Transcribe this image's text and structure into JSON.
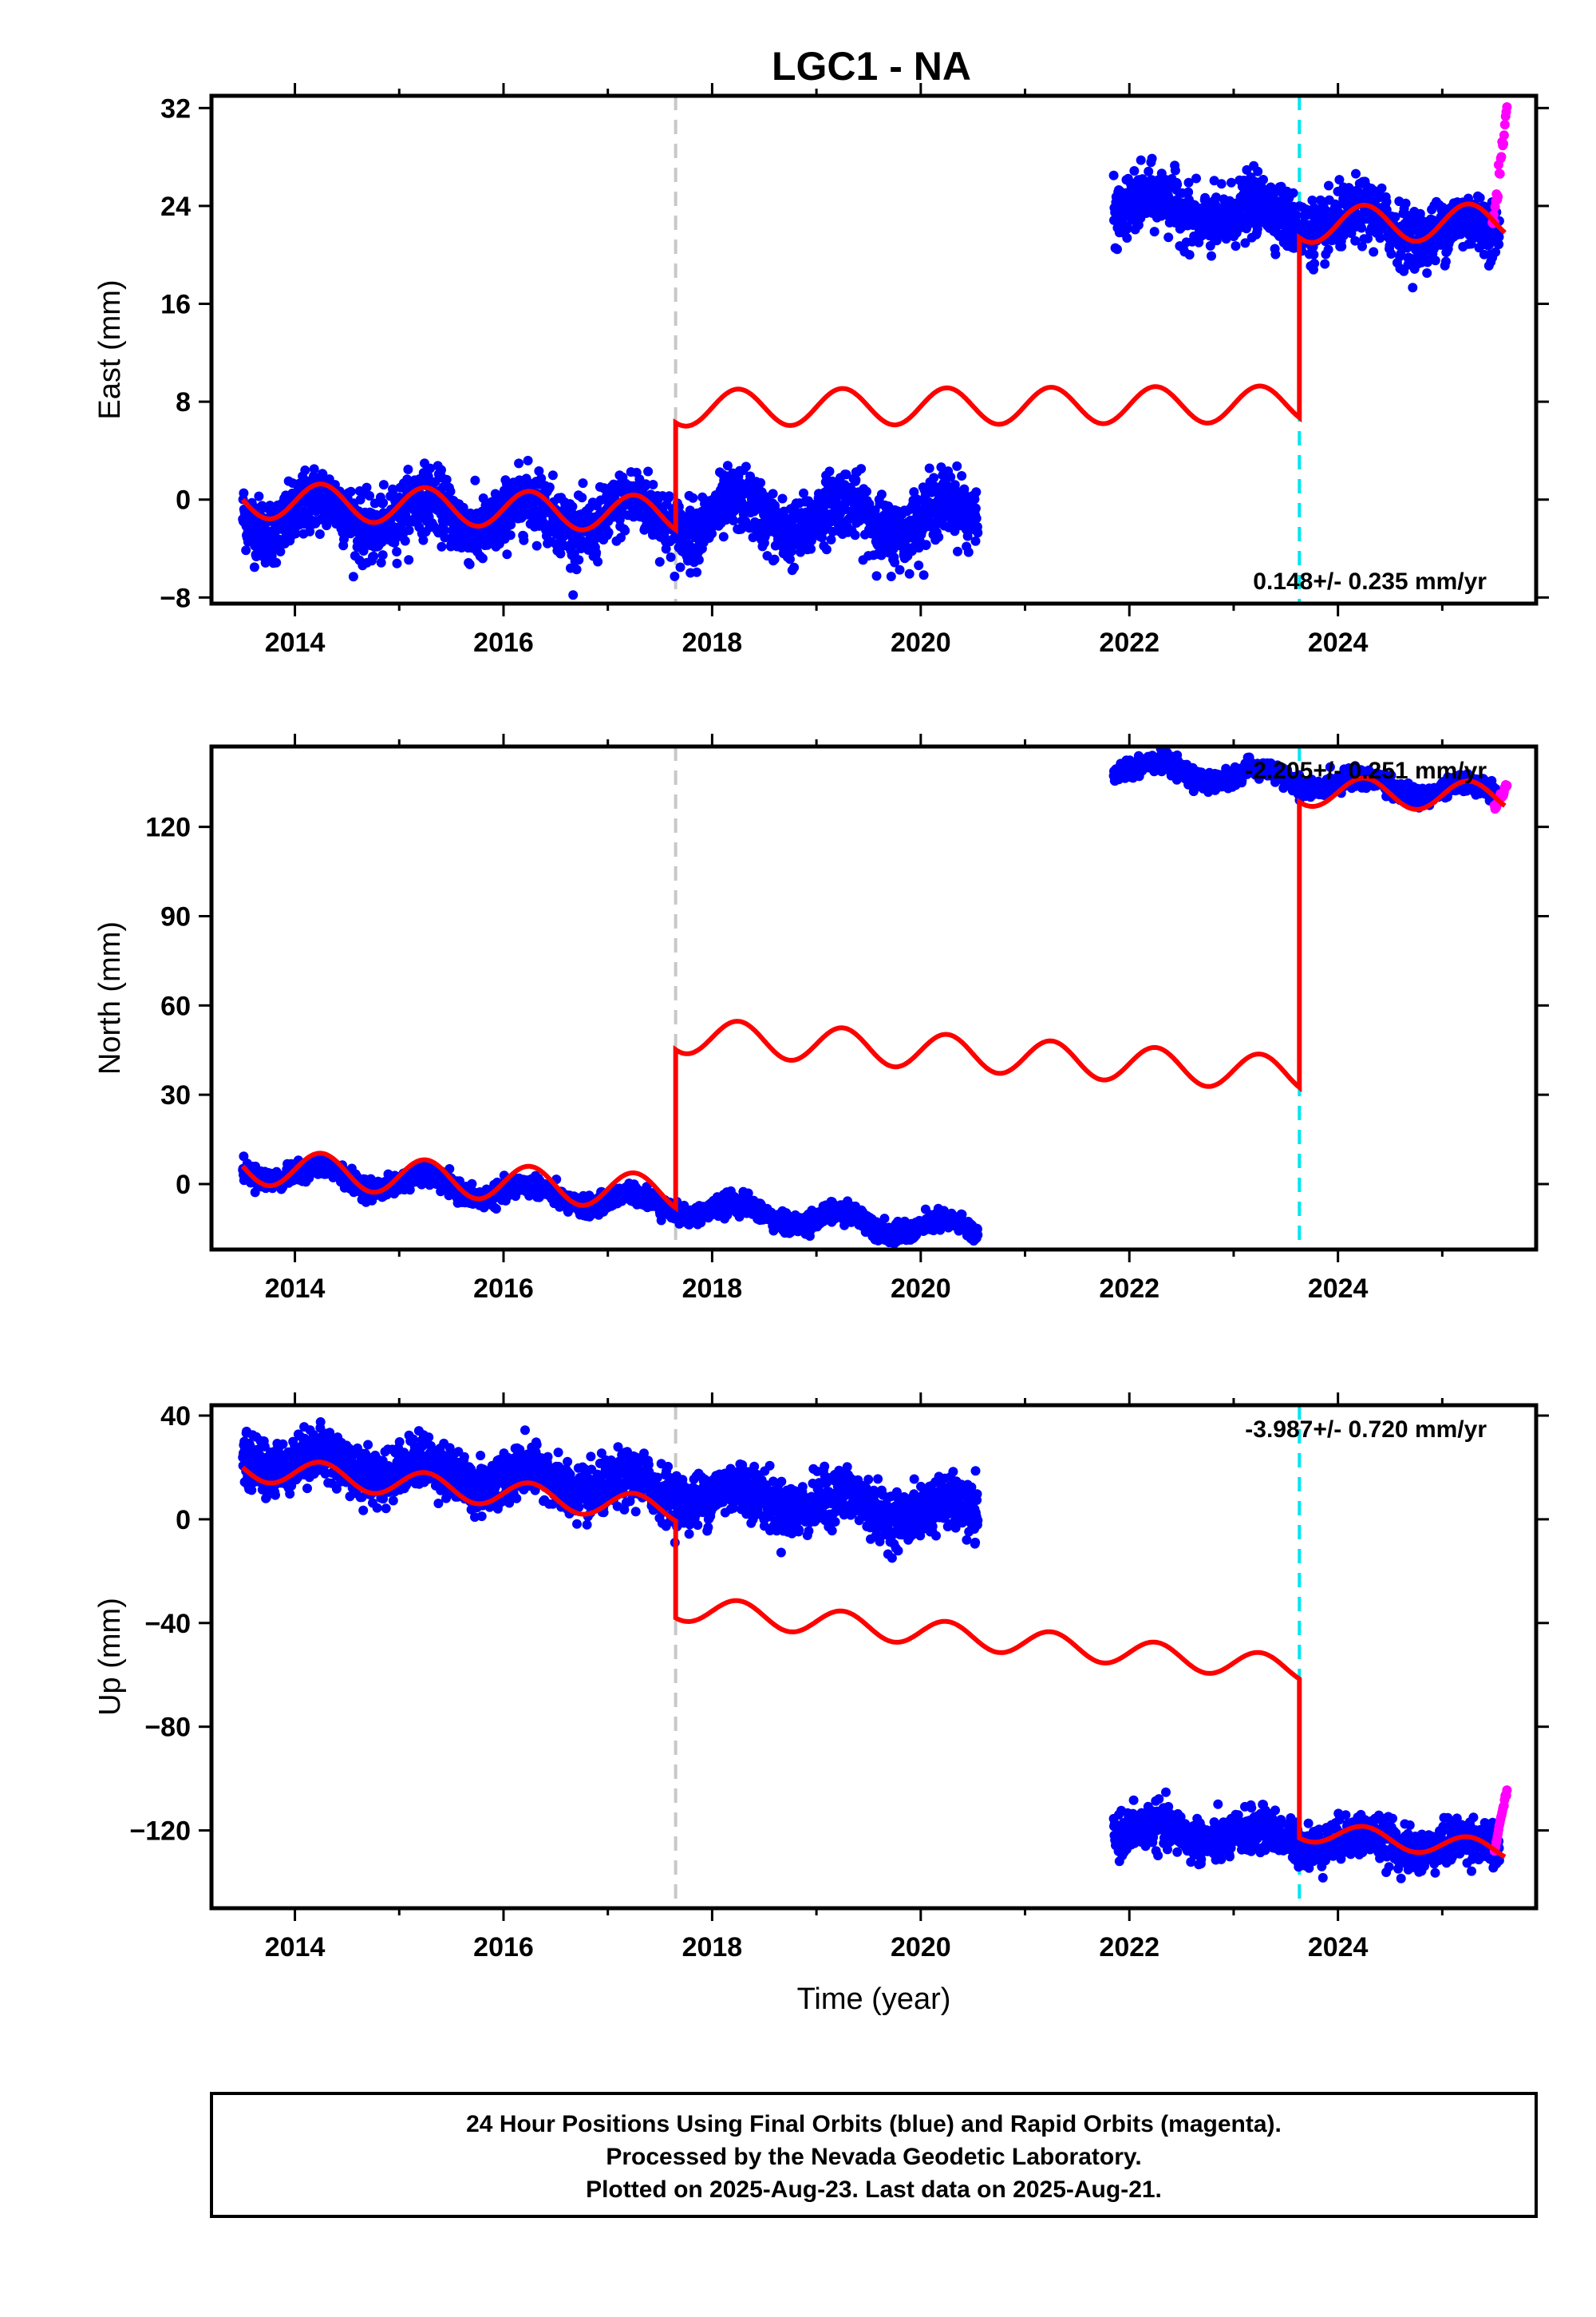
{
  "title": "LGC1 - NA",
  "chart_data": [
    {
      "type": "scatter",
      "ylabel": "East (mm)",
      "xlim": [
        2013.2,
        2025.9
      ],
      "ylim": [
        -8.5,
        33
      ],
      "yticks": [
        -8,
        0,
        8,
        16,
        24,
        32
      ],
      "xticks": [
        2014,
        2016,
        2018,
        2020,
        2022,
        2024
      ],
      "rate": "0.148+/- 0.235 mm/yr",
      "rate_anchor": "bottom",
      "dashed_lines": [
        {
          "x": 2017.65,
          "color": "#c8c8c8"
        },
        {
          "x": 2023.63,
          "color": "#00e5ee"
        }
      ],
      "segments": [
        {
          "x0": 2013.5,
          "x1": 2017.65,
          "offset": 0,
          "trend": -0.3,
          "amp": 1.5,
          "phase": 0.0
        },
        {
          "x0": 2017.65,
          "x1": 2023.63,
          "offset": 7.5,
          "trend": 0.05,
          "amp": 1.5,
          "phase": 0.0
        },
        {
          "x0": 2023.63,
          "x1": 2025.6,
          "offset": 22.5,
          "trend": 0.1,
          "amp": 1.5,
          "phase": 0.0
        }
      ],
      "blue_data": [
        {
          "x0": 2013.5,
          "x1": 2020.55,
          "offset": -1.2,
          "trend": -0.05,
          "amp": 1.4,
          "spread": 1.3
        },
        {
          "x0": 2021.85,
          "x1": 2025.55,
          "offset": 24,
          "trend": -0.6,
          "amp": 1.0,
          "spread": 1.2
        }
      ],
      "magenta_data": {
        "x0": 2025.48,
        "x1": 2025.62,
        "y0": 22,
        "y1": 32
      }
    },
    {
      "type": "scatter",
      "ylabel": "North (mm)",
      "xlim": [
        2013.2,
        2025.9
      ],
      "ylim": [
        -22,
        147
      ],
      "yticks": [
        0,
        30,
        60,
        90,
        120
      ],
      "xticks": [
        2014,
        2016,
        2018,
        2020,
        2022,
        2024
      ],
      "rate": "-2.205+/- 0.251 mm/yr",
      "rate_anchor": "top",
      "dashed_lines": [
        {
          "x": 2017.65,
          "color": "#c8c8c8"
        },
        {
          "x": 2023.63,
          "color": "#00e5ee"
        }
      ],
      "segments": [
        {
          "x0": 2013.5,
          "x1": 2017.65,
          "offset": 6,
          "trend": -2.2,
          "amp": 6,
          "phase": 0.0
        },
        {
          "x0": 2017.65,
          "x1": 2023.63,
          "offset": 50,
          "trend": -2.2,
          "amp": 6,
          "phase": 0.0
        },
        {
          "x0": 2023.63,
          "x1": 2025.6,
          "offset": 132,
          "trend": -1.0,
          "amp": 5,
          "phase": 0.0
        }
      ],
      "blue_data": [
        {
          "x0": 2013.5,
          "x1": 2020.55,
          "offset": 5,
          "trend": -3.0,
          "amp": 3,
          "spread": 1.6
        },
        {
          "x0": 2021.85,
          "x1": 2025.55,
          "offset": 140,
          "trend": -2.4,
          "amp": 3,
          "spread": 1.5
        }
      ],
      "magenta_data": {
        "x0": 2025.5,
        "x1": 2025.62,
        "y0": 126,
        "y1": 134
      }
    },
    {
      "type": "scatter",
      "ylabel": "Up (mm)",
      "xlim": [
        2013.2,
        2025.9
      ],
      "ylim": [
        -150,
        44
      ],
      "yticks": [
        -120,
        -80,
        -40,
        0,
        40
      ],
      "xticks": [
        2014,
        2016,
        2018,
        2020,
        2022,
        2024
      ],
      "xlabel": "Time (year)",
      "rate": "-3.987+/- 0.720 mm/yr",
      "rate_anchor": "top",
      "dashed_lines": [
        {
          "x": 2017.65,
          "color": "#c8c8c8"
        },
        {
          "x": 2023.63,
          "color": "#00e5ee"
        }
      ],
      "segments": [
        {
          "x0": 2013.5,
          "x1": 2017.65,
          "offset": 20,
          "trend": -4.0,
          "amp": 5,
          "phase": 0.0
        },
        {
          "x0": 2017.65,
          "x1": 2023.63,
          "offset": -34,
          "trend": -4.0,
          "amp": 5,
          "phase": 0.0
        },
        {
          "x0": 2023.63,
          "x1": 2025.6,
          "offset": -120,
          "trend": -4.0,
          "amp": 4,
          "phase": 0.0
        }
      ],
      "blue_data": [
        {
          "x0": 2013.5,
          "x1": 2020.55,
          "offset": 24,
          "trend": -3.2,
          "amp": 4,
          "spread": 5
        },
        {
          "x0": 2021.85,
          "x1": 2025.55,
          "offset": -120,
          "trend": -1.8,
          "amp": 3,
          "spread": 4
        }
      ],
      "magenta_data": {
        "x0": 2025.5,
        "x1": 2025.62,
        "y0": -128,
        "y1": -104
      }
    }
  ],
  "footer": {
    "line1": "24 Hour Positions Using Final Orbits (blue) and Rapid Orbits (magenta).",
    "line2": "Processed by the Nevada Geodetic Laboratory.",
    "line3": "Plotted on 2025-Aug-23. Last data on 2025-Aug-21."
  },
  "colors": {
    "final_orbits": "#0000ff",
    "rapid_orbits": "#ff00ff",
    "model": "#ff0000"
  }
}
